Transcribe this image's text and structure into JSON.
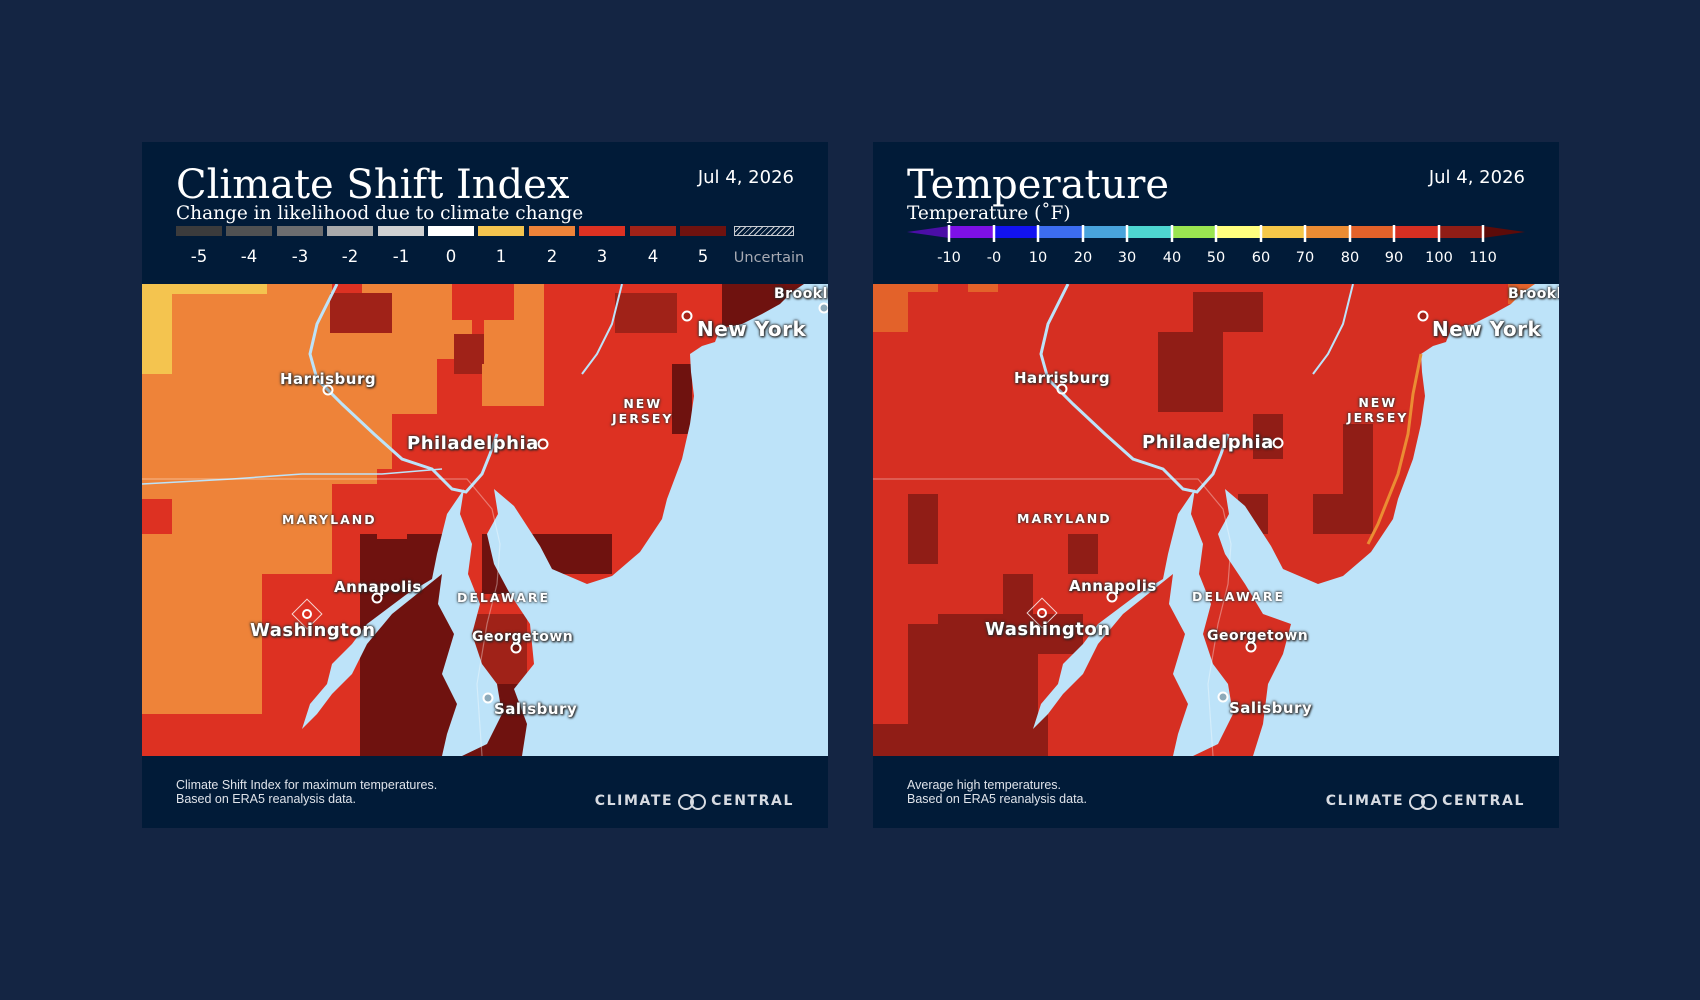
{
  "panels": [
    {
      "title": "Climate Shift Index",
      "subtitle": "Change in likelihood due to climate change",
      "date": "Jul 4, 2026",
      "legend": {
        "labels": [
          "-5",
          "-4",
          "-3",
          "-2",
          "-1",
          "0",
          "1",
          "2",
          "3",
          "4",
          "5"
        ],
        "colors": [
          "#3b3b3c",
          "#505152",
          "#6c6d6f",
          "#a9aaab",
          "#cfd0d1",
          "#ffffff",
          "#f4c44f",
          "#ee8339",
          "#dd3122",
          "#a02218",
          "#6f120f"
        ],
        "uncertain_label": "Uncertain"
      },
      "footer_line1": "Climate Shift Index for maximum temperatures.",
      "footer_line2": "Based on ERA5 reanalysis data.",
      "brand_left": "CLIMATE",
      "brand_right": "CENTRAL"
    },
    {
      "title": "Temperature",
      "subtitle": "Temperature (˚F)",
      "date": "Jul 4, 2026",
      "legend": {
        "labels": [
          "-10",
          "-0",
          "10",
          "20",
          "30",
          "40",
          "50",
          "60",
          "70",
          "80",
          "90",
          "100",
          "110"
        ],
        "colors": [
          "#4b0ea6",
          "#7d10e6",
          "#1212f0",
          "#3c6df0",
          "#49a4dc",
          "#4dd6d1",
          "#9ae551",
          "#ffff7f",
          "#f5c749",
          "#eb8c33",
          "#e3622a",
          "#d62f22",
          "#901d16",
          "#5c0b09"
        ]
      },
      "footer_line1": "Average high temperatures.",
      "footer_line2": "Based on ERA5 reanalysis data.",
      "brand_left": "CLIMATE",
      "brand_right": "CENTRAL"
    }
  ],
  "map_labels": {
    "new_york": "New York",
    "brooklyn": "Brookl",
    "harrisburg": "Harrisburg",
    "philadelphia": "Philadelphia",
    "new_jersey_1": "NEW",
    "new_jersey_2": "JERSEY",
    "maryland": "MARYLAND",
    "annapolis": "Annapolis",
    "delaware": "DELAWARE",
    "washington": "Washington",
    "georgetown": "Georgetown",
    "salisbury": "Salisbury"
  },
  "colors": {
    "page_background": "#142543",
    "card_background": "#011b38",
    "water": "#bde3f9"
  }
}
